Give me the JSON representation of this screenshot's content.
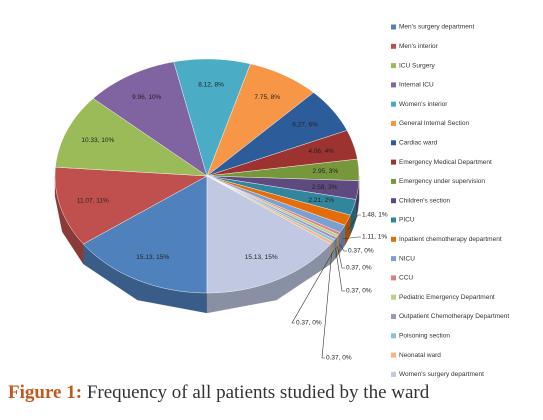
{
  "chart_data": {
    "type": "pie3d",
    "categories": [
      "Men's surgery department",
      "Men's interior",
      "ICU Surgery",
      "Internal ICU",
      "Women's interior",
      "General Internal Section",
      "Cardiac ward",
      "Emergency Medical Department",
      "Emergency under supervision",
      "Children's section",
      "PICU",
      "Inpatient chemotherapy department",
      "NICU",
      "CCU",
      "Pediatric Emergency Department",
      "Outpatient Chemotherapy Department",
      "Poisoning section",
      "Neonatal ward",
      "Women's surgery department"
    ],
    "values": [
      15.13,
      11.07,
      10.33,
      9.96,
      8.12,
      7.75,
      6.27,
      4.06,
      2.95,
      2.58,
      2.21,
      1.48,
      1.11,
      0.37,
      0.37,
      0.37,
      0.37,
      0.37,
      15.13
    ],
    "value_labels": [
      "15.13, 15%",
      "11.07, 11%",
      "10.33, 10%",
      "9.96, 10%",
      "8.12, 8%",
      "7.75, 8%",
      "6.27, 6%",
      "4.06, 4%",
      "2.95, 3%",
      "2.58, 3%",
      "2.21, 2%",
      "1.48, 1%",
      "1.11, 1%",
      "0.37, 0%",
      "0.37, 0%",
      "0.37, 0%",
      "0.37, 0%",
      "0.37, 0%",
      "15.13, 15%"
    ],
    "colors": [
      "#4f81bd",
      "#c0504d",
      "#9bbb59",
      "#8064a2",
      "#4bacc6",
      "#f79646",
      "#2c5d9a",
      "#9c3330",
      "#77973d",
      "#5f4a7f",
      "#31859c",
      "#e46c0a",
      "#7d9fd0",
      "#d9827f",
      "#b8d08a",
      "#a593c1",
      "#86c6d8",
      "#f9b47f",
      "#c0c8e2"
    ],
    "legend_position": "right"
  },
  "figure_caption": {
    "label": "Figure 1:",
    "text": "Frequency of all patients studied by the ward"
  }
}
